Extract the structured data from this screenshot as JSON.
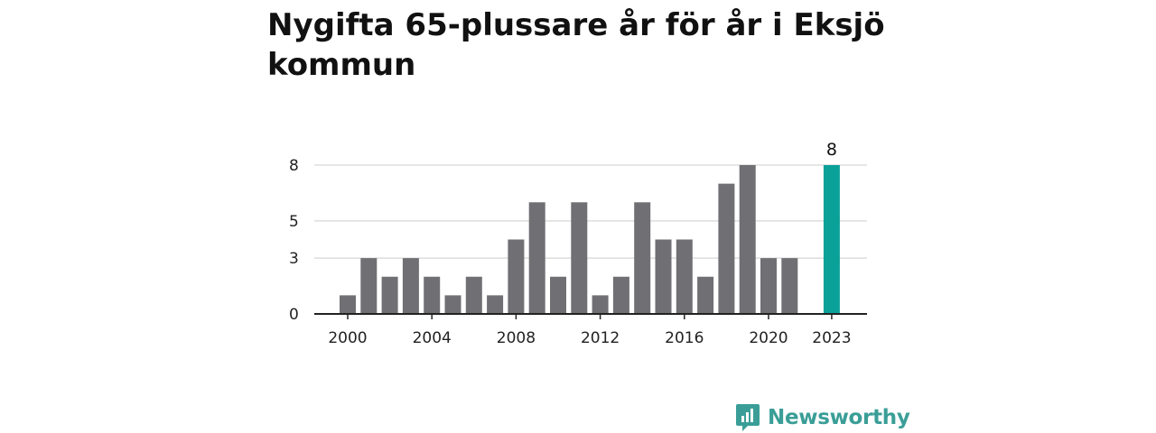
{
  "colors": {
    "bar": "#707074",
    "highlight": "#0aa198",
    "grid": "#dddddd",
    "axis": "#222222",
    "brand": "#3a9e97"
  },
  "chart_data": {
    "type": "bar",
    "title": "Nygifta 65-plussare år för år i Eksjö kommun",
    "xlabel": "",
    "ylabel": "",
    "categories": [
      2000,
      2001,
      2002,
      2003,
      2004,
      2005,
      2006,
      2007,
      2008,
      2009,
      2010,
      2011,
      2012,
      2013,
      2014,
      2015,
      2016,
      2017,
      2018,
      2019,
      2020,
      2021,
      2023
    ],
    "values": [
      1,
      3,
      2,
      3,
      2,
      1,
      2,
      1,
      4,
      6,
      2,
      6,
      1,
      2,
      6,
      4,
      4,
      2,
      7,
      8,
      3,
      3,
      8
    ],
    "x_ticks": [
      "2000",
      "2004",
      "2008",
      "2012",
      "2016",
      "2020",
      "2023"
    ],
    "y_ticks": [
      "0",
      "3",
      "5",
      "8"
    ],
    "ylim": [
      0,
      8
    ],
    "highlight": {
      "category": 2023,
      "label": "8"
    },
    "grid": true
  },
  "footer": {
    "brand_name": "Newsworthy",
    "brand_icon": "bar-chart-speech-icon"
  }
}
